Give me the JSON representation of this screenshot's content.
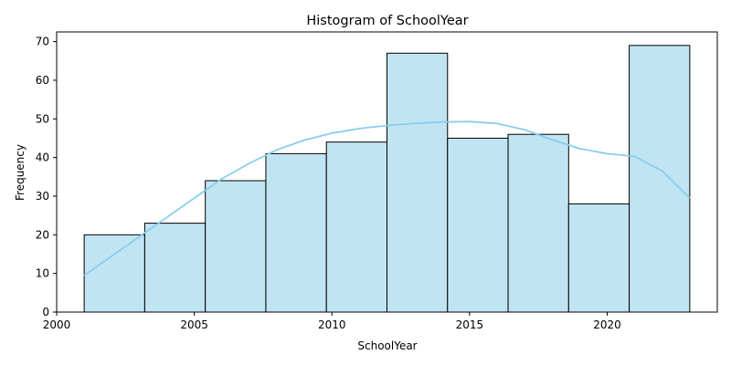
{
  "chart_data": {
    "type": "bar",
    "subtype": "histogram",
    "title": "Histogram of SchoolYear",
    "xlabel": "SchoolYear",
    "ylabel": "Frequency",
    "xlim": [
      2000,
      2024
    ],
    "ylim": [
      0,
      72.5
    ],
    "x_ticks": [
      2000,
      2005,
      2010,
      2015,
      2020
    ],
    "y_ticks": [
      0,
      10,
      20,
      30,
      40,
      50,
      60,
      70
    ],
    "bins": [
      {
        "start": 2001.0,
        "end": 2003.2,
        "count": 20
      },
      {
        "start": 2003.2,
        "end": 2005.4,
        "count": 23
      },
      {
        "start": 2005.4,
        "end": 2007.6,
        "count": 34
      },
      {
        "start": 2007.6,
        "end": 2009.8,
        "count": 41
      },
      {
        "start": 2009.8,
        "end": 2012.0,
        "count": 44
      },
      {
        "start": 2012.0,
        "end": 2014.2,
        "count": 67
      },
      {
        "start": 2014.2,
        "end": 2016.4,
        "count": 45
      },
      {
        "start": 2016.4,
        "end": 2018.6,
        "count": 46
      },
      {
        "start": 2018.6,
        "end": 2020.8,
        "count": 28
      },
      {
        "start": 2020.8,
        "end": 2023.0,
        "count": 69
      }
    ],
    "kde_curve": {
      "x": [
        2001,
        2002,
        2003,
        2004,
        2005,
        2006,
        2007,
        2008,
        2009,
        2010,
        2011,
        2012,
        2013,
        2014,
        2015,
        2016,
        2017,
        2018,
        2019,
        2020,
        2021,
        2022,
        2023
      ],
      "y": [
        9.5,
        14.5,
        19.5,
        24.5,
        29.5,
        34.5,
        38.5,
        42,
        44.5,
        46.3,
        47.5,
        48.3,
        48.8,
        49.2,
        49.3,
        48.8,
        47.2,
        44.6,
        42.3,
        41,
        40.3,
        36.5,
        29.5
      ]
    },
    "grid": false,
    "legend": false,
    "colors": {
      "bar_fill": "#c1e4f3",
      "bar_edge": "#000000",
      "kde_line": "#87ceeb"
    }
  }
}
